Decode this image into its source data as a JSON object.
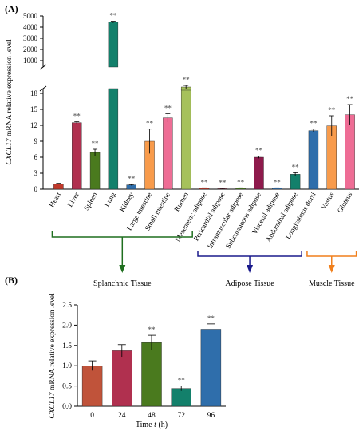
{
  "panel_a_label": "(A)",
  "panel_b_label": "(B)",
  "colors": {
    "axis": "#000000",
    "error": "#000000",
    "splanchnic_bracket": "#1f6f1f",
    "adipose_bracket": "#1a1a8c",
    "muscle_bracket": "#f07f1c"
  },
  "groups": [
    {
      "label": "Splanchnic Tissue",
      "color": "#1f6f1f",
      "from": "Heart",
      "to": "Rumen"
    },
    {
      "label": "Adipose Tissue",
      "color": "#1a1a8c",
      "from": "Mesenteric adipose",
      "to": "Abdominal adipose"
    },
    {
      "label": "Muscle Tissue",
      "color": "#f07f1c",
      "from": "Longissimus dorsi",
      "to": "Gluteus"
    }
  ],
  "chart_data": [
    {
      "type": "bar",
      "panel": "A",
      "ylabel_italic": "CXCL17",
      "ylabel_rest": " mRNA relative expression level",
      "axis_break": true,
      "ylim_lower": [
        0,
        18
      ],
      "yticks_lower": [
        "0",
        "3",
        "6",
        "9",
        "12",
        "15",
        "18"
      ],
      "ylim_upper": [
        1000,
        5000
      ],
      "yticks_upper": [
        "1000",
        "2000",
        "3000",
        "4000",
        "5000"
      ],
      "categories": [
        "Heart",
        "Liver",
        "Spleen",
        "Lung",
        "Kidney",
        "Large intestine",
        "Small intestine",
        "Rumen",
        "Mesenteric adipose",
        "Pericardial adipose",
        "Intramuscular adipose",
        "Subcutaneous adipose",
        "Visceral adipose",
        "Abdominal adipose",
        "Longissimus dorsi",
        "Vastus",
        "Gluteus"
      ],
      "values": [
        1.0,
        12.5,
        6.9,
        4450,
        0.8,
        9.0,
        13.4,
        220,
        0.2,
        0.1,
        0.2,
        6.0,
        0.2,
        2.8,
        11.0,
        11.9,
        14.0
      ],
      "errors": [
        0.1,
        0.2,
        0.6,
        80,
        0.1,
        2.3,
        0.8,
        30,
        0.05,
        0.05,
        0.05,
        0.2,
        0.05,
        0.3,
        0.3,
        1.9,
        1.9
      ],
      "significance": [
        "",
        "**",
        "**",
        "**",
        "**",
        "**",
        "**",
        "**",
        "**",
        "**",
        "**",
        "**",
        "**",
        "**",
        "**",
        "**",
        "**"
      ],
      "colors": [
        "#c0392b",
        "#b0304f",
        "#4a7a1e",
        "#13806b",
        "#2f6eab",
        "#f89b4b",
        "#ee6d95",
        "#a6c15b",
        "#c0392b",
        "#b0304f",
        "#4a7a1e",
        "#8e1a4c",
        "#2f6eab",
        "#13806b",
        "#2f6eab",
        "#f89b4b",
        "#ee6d95"
      ]
    },
    {
      "type": "bar",
      "panel": "B",
      "ylabel_italic": "CXCL17",
      "ylabel_rest": " mRNA relative expression level",
      "xlabel": "Time",
      "xlabel_italic": "t",
      "xlabel_unit": "(h)",
      "ylim": [
        0,
        2.5
      ],
      "yticks": [
        "0.0",
        "0.5",
        "1.0",
        "1.5",
        "2.0",
        "2.5"
      ],
      "categories": [
        "0",
        "24",
        "48",
        "72",
        "96"
      ],
      "values": [
        1.0,
        1.37,
        1.57,
        0.44,
        1.9
      ],
      "errors": [
        0.12,
        0.15,
        0.18,
        0.06,
        0.13
      ],
      "significance": [
        "",
        "",
        "**",
        "**",
        "**"
      ],
      "colors": [
        "#c0533a",
        "#b0304f",
        "#4a7a1e",
        "#13806b",
        "#2f6eab"
      ]
    }
  ]
}
